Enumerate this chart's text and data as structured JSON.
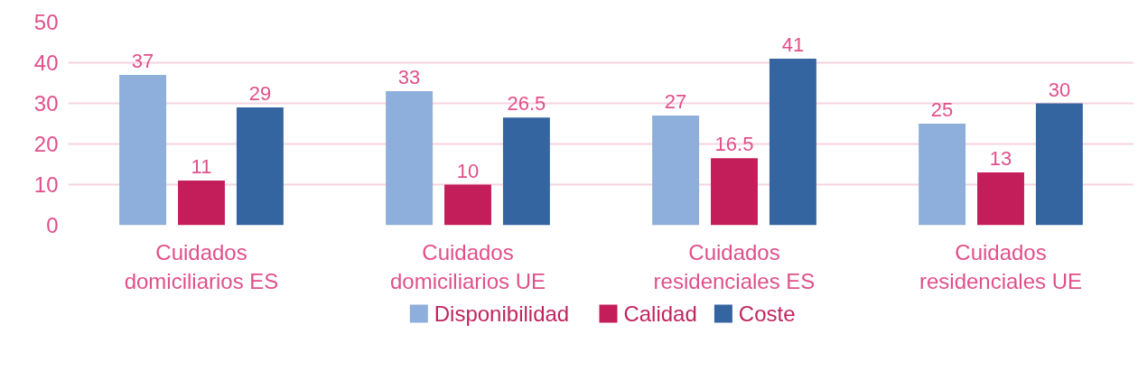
{
  "chart_data": {
    "type": "bar",
    "categories": [
      "Cuidados\ndomiciliarios ES",
      "Cuidados\ndomiciliarios UE",
      "Cuidados\nresidenciales ES",
      "Cuidados\nresidenciales UE"
    ],
    "series": [
      {
        "name": "Disponibilidad",
        "color": "#8eaedb",
        "values": [
          37,
          33,
          27,
          25
        ]
      },
      {
        "name": "Calidad",
        "color": "#c41e5a",
        "values": [
          11,
          10,
          16.5,
          13
        ]
      },
      {
        "name": "Coste",
        "color": "#3465a0",
        "values": [
          29,
          26.5,
          41,
          30
        ]
      }
    ],
    "ylim": [
      0,
      50
    ],
    "yticks": [
      0,
      10,
      20,
      30,
      40,
      50
    ],
    "grid": "y",
    "legend": "bottom",
    "data_labels": true
  }
}
